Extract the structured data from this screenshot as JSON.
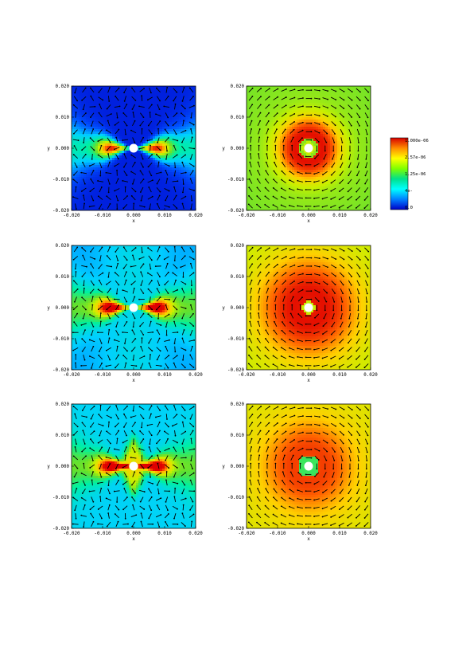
{
  "figure": {
    "panels": [
      {
        "id": "row1-left",
        "field": "lobes",
        "variant": 1,
        "x_ticks": [
          "-0.020",
          "-0.010",
          "0.000",
          "0.010",
          "0.020"
        ],
        "y_ticks": [
          "0.020",
          "0.010",
          "0.000",
          "-0.010",
          "-0.020"
        ],
        "xlabel": "x",
        "ylabel": "y"
      },
      {
        "id": "row1-right",
        "field": "ring",
        "variant": 1,
        "x_ticks": [
          "-0.020",
          "-0.010",
          "0.000",
          "0.010",
          "0.020"
        ],
        "y_ticks": [
          "0.020",
          "0.010",
          "0.000",
          "-0.010",
          "-0.020"
        ],
        "xlabel": "x",
        "ylabel": "y"
      },
      {
        "id": "row2-left",
        "field": "lobes",
        "variant": 2,
        "x_ticks": [
          "-0.020",
          "-0.010",
          "0.000",
          "0.010",
          "0.020"
        ],
        "y_ticks": [
          "0.020",
          "0.010",
          "0.000",
          "-0.010",
          "-0.020"
        ],
        "xlabel": "x",
        "ylabel": "y"
      },
      {
        "id": "row2-right",
        "field": "ring",
        "variant": 2,
        "x_ticks": [
          "-0.020",
          "-0.010",
          "0.000",
          "0.010",
          "0.020"
        ],
        "y_ticks": [
          "0.020",
          "0.010",
          "0.000",
          "-0.010",
          "-0.020"
        ],
        "xlabel": "x",
        "ylabel": "y"
      },
      {
        "id": "row3-left",
        "field": "lobes",
        "variant": 3,
        "x_ticks": [
          "-0.020",
          "-0.010",
          "0.000",
          "0.010",
          "0.020"
        ],
        "y_ticks": [
          "0.020",
          "0.010",
          "0.000",
          "-0.010",
          "-0.020"
        ],
        "xlabel": "x",
        "ylabel": "y"
      },
      {
        "id": "row3-right",
        "field": "ring",
        "variant": 3,
        "x_ticks": [
          "-0.020",
          "-0.010",
          "0.000",
          "0.010",
          "0.020"
        ],
        "y_ticks": [
          "0.020",
          "0.010",
          "0.000",
          "-0.010",
          "-0.020"
        ],
        "xlabel": "x",
        "ylabel": "y"
      }
    ],
    "colorbar": {
      "labels": [
        "1.000e-06",
        "2.57e-06",
        "1.25e-06",
        "4e-",
        "0.0"
      ],
      "colors": [
        "#d70000",
        "#ff8c00",
        "#ffff00",
        "#7fff00",
        "#00e08a",
        "#00ffff",
        "#007fff",
        "#0000c8"
      ]
    },
    "colormap": [
      "#0000c8",
      "#0050ff",
      "#00d0ff",
      "#00f0a0",
      "#60e030",
      "#c8f000",
      "#ffd000",
      "#ff6000",
      "#e00000"
    ],
    "marker_color": "#ffffff",
    "arrow_color": "#000000"
  }
}
